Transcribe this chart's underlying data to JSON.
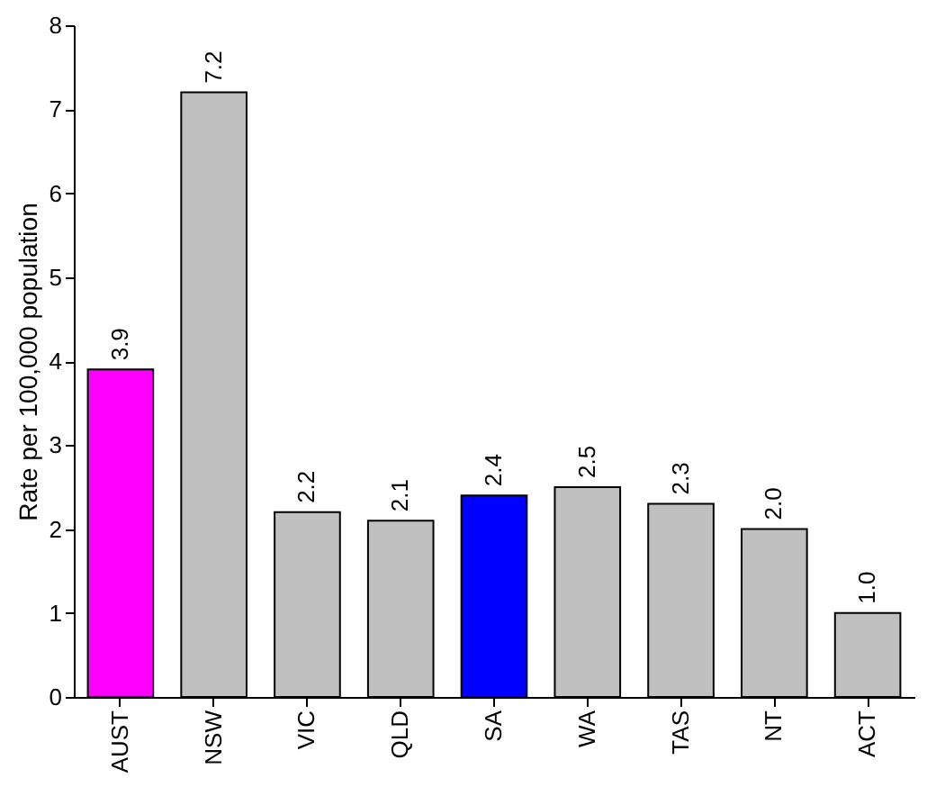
{
  "chart_data": {
    "type": "bar",
    "ylabel": "Rate per 100,000 population",
    "categories": [
      "AUST",
      "NSW",
      "VIC",
      "QLD",
      "SA",
      "WA",
      "TAS",
      "NT",
      "ACT"
    ],
    "values": [
      3.9,
      7.2,
      2.2,
      2.1,
      2.4,
      2.5,
      2.3,
      2.0,
      1.0
    ],
    "value_labels": [
      "3.9",
      "7.2",
      "2.2",
      "2.1",
      "2.4",
      "2.5",
      "2.3",
      "2.0",
      "1.0"
    ],
    "colors": [
      "#ff00ff",
      "#c0c0c0",
      "#c0c0c0",
      "#c0c0c0",
      "#0000ff",
      "#c0c0c0",
      "#c0c0c0",
      "#c0c0c0",
      "#c0c0c0"
    ],
    "ylim": [
      0,
      8
    ],
    "yticks": [
      0,
      1,
      2,
      3,
      4,
      5,
      6,
      7,
      8
    ],
    "grid": false,
    "legend": false
  }
}
